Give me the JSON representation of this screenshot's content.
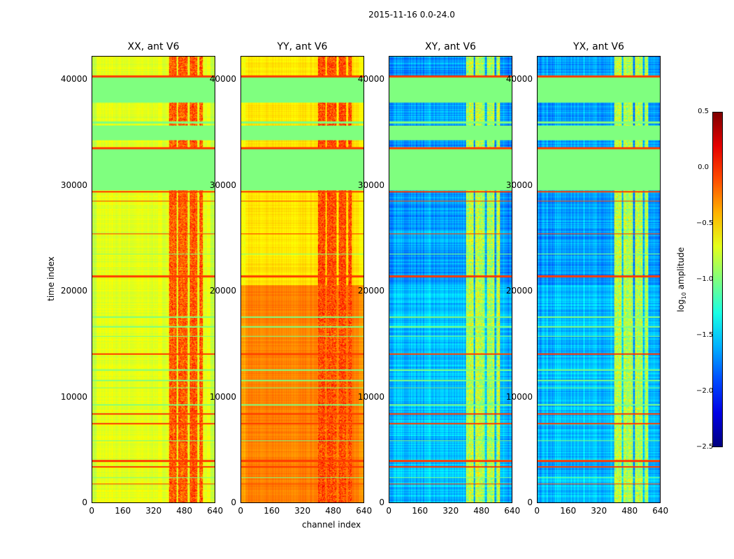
{
  "chart_data": {
    "type": "heatmap",
    "title": "2015-11-16 0.0-24.0",
    "xlabel": "channel index",
    "ylabel": "time index",
    "xlim": [
      0,
      640
    ],
    "ylim": [
      0,
      42250
    ],
    "xticks": [
      "0",
      "160",
      "320",
      "480",
      "640"
    ],
    "yticks": [
      "0",
      "10000",
      "20000",
      "30000",
      "40000"
    ],
    "colorbar": {
      "label": "log10 amplitude",
      "range": [
        -2.5,
        0.5
      ],
      "ticks": [
        "0.5",
        "0.0",
        "−0.5",
        "−1.0",
        "−1.5",
        "−2.0",
        "−2.5"
      ],
      "colormap": "jet"
    },
    "flag_value": -1.0,
    "flagged_time_bands": [
      [
        37900,
        40300
      ],
      [
        35900,
        36100
      ],
      [
        34300,
        35700
      ],
      [
        29600,
        33500
      ]
    ],
    "strong_time_lines": [
      [
        40300,
        40500
      ],
      [
        33500,
        33700
      ],
      [
        29400,
        29500
      ],
      [
        28500,
        28600
      ],
      [
        25400,
        25500
      ],
      [
        21300,
        21500
      ],
      [
        14000,
        14150
      ],
      [
        8300,
        8450
      ],
      [
        7400,
        7500
      ],
      [
        3800,
        4000
      ],
      [
        3300,
        3400
      ],
      [
        1700,
        1800
      ]
    ],
    "flag_lines": [
      [
        35100,
        35200
      ],
      [
        34700,
        34800
      ],
      [
        23500,
        23600
      ],
      [
        17500,
        17600
      ],
      [
        16600,
        16700
      ],
      [
        15700,
        15800
      ],
      [
        12500,
        12600
      ],
      [
        11500,
        11600
      ],
      [
        10800,
        10900
      ],
      [
        9200,
        9300
      ],
      [
        5800,
        5900
      ],
      [
        2300,
        2400
      ]
    ],
    "rfi_channels": [
      [
        400,
        440
      ],
      [
        450,
        500
      ],
      [
        510,
        550
      ],
      [
        560,
        580
      ]
    ],
    "panels": [
      {
        "title": "XX, ant V6",
        "base": -0.7,
        "low_base": -0.7,
        "rfi": -0.15,
        "line": -0.05,
        "noise": 0.12
      },
      {
        "title": "YY, ant V6",
        "base": -0.55,
        "low_base": -0.25,
        "rfi": -0.1,
        "line": -0.05,
        "noise": 0.1
      },
      {
        "title": "XY, ant V6",
        "base": -1.65,
        "low_base": -1.55,
        "rfi": -0.85,
        "line": -0.05,
        "noise": 0.25
      },
      {
        "title": "YX, ant V6",
        "base": -1.65,
        "low_base": -1.55,
        "rfi": -0.85,
        "line": -0.05,
        "noise": 0.25
      }
    ]
  }
}
